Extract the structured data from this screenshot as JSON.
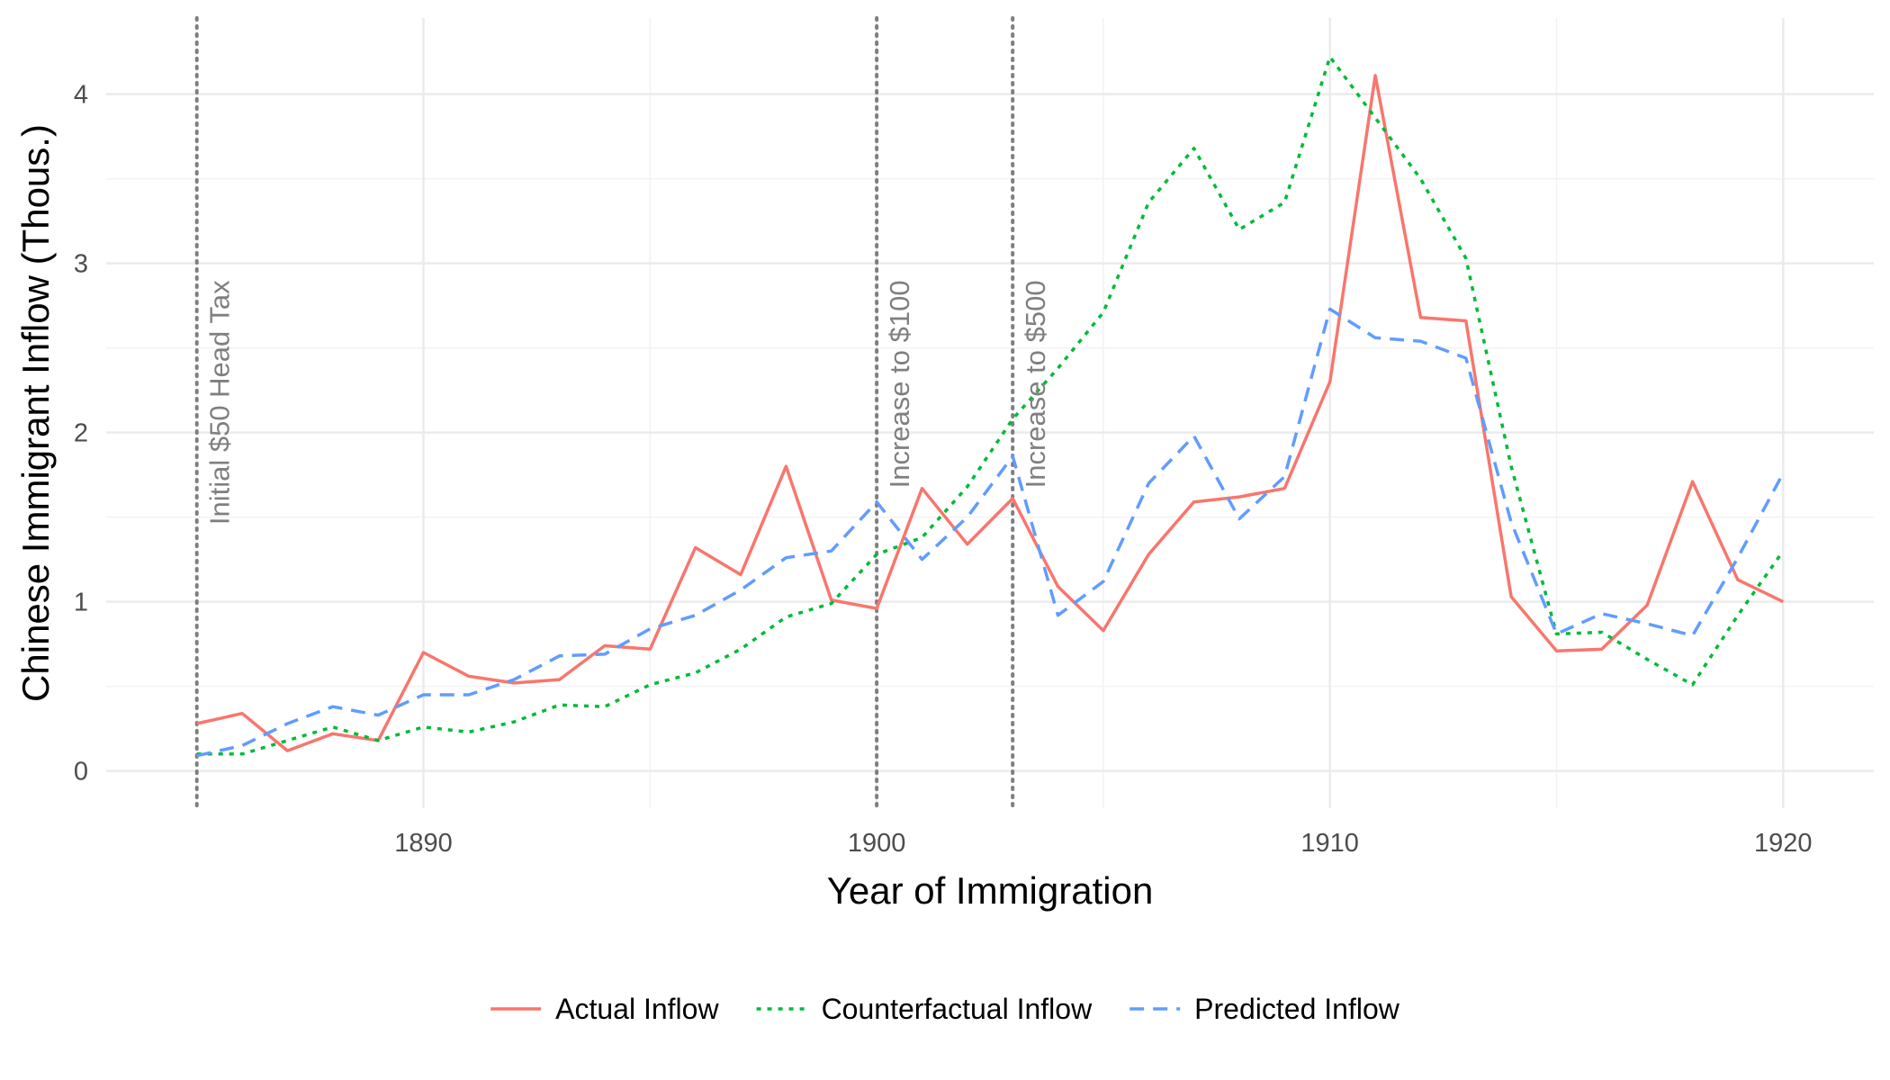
{
  "chart_data": {
    "type": "line",
    "title": "",
    "xlabel": "Year of Immigration",
    "ylabel": "Chinese Immigrant Inflow (Thous.)",
    "xlim": [
      1883,
      1922
    ],
    "ylim": [
      -0.22,
      4.45
    ],
    "x_ticks": [
      1890,
      1900,
      1910,
      1920
    ],
    "y_ticks": [
      0,
      1,
      2,
      3,
      4
    ],
    "grid": true,
    "legend_position": "bottom",
    "x": [
      1885,
      1886,
      1887,
      1888,
      1889,
      1890,
      1891,
      1892,
      1893,
      1894,
      1895,
      1896,
      1897,
      1898,
      1899,
      1900,
      1901,
      1902,
      1903,
      1904,
      1905,
      1906,
      1907,
      1908,
      1909,
      1910,
      1911,
      1912,
      1913,
      1914,
      1915,
      1916,
      1917,
      1918,
      1919,
      1920
    ],
    "series": [
      {
        "name": "Actual Inflow",
        "color": "#F8766D",
        "dash": "solid",
        "values": [
          0.28,
          0.34,
          0.12,
          0.22,
          0.18,
          0.7,
          0.56,
          0.52,
          0.54,
          0.74,
          0.72,
          1.32,
          1.16,
          1.8,
          1.01,
          0.96,
          1.67,
          1.34,
          1.61,
          1.09,
          0.83,
          1.28,
          1.59,
          1.62,
          1.67,
          2.3,
          4.11,
          2.68,
          2.66,
          1.03,
          0.71,
          0.72,
          0.98,
          1.71,
          1.13,
          1.0
        ]
      },
      {
        "name": "Counterfactual Inflow",
        "color": "#00BA38",
        "dash": "dotted",
        "values": [
          0.1,
          0.1,
          0.18,
          0.26,
          0.18,
          0.26,
          0.23,
          0.29,
          0.39,
          0.38,
          0.51,
          0.58,
          0.72,
          0.91,
          0.99,
          1.28,
          1.38,
          1.68,
          2.08,
          2.38,
          2.71,
          3.36,
          3.68,
          3.2,
          3.36,
          4.22,
          3.86,
          3.5,
          3.03,
          1.8,
          0.81,
          0.82,
          0.66,
          0.51,
          0.92,
          1.3
        ]
      },
      {
        "name": "Predicted Inflow",
        "color": "#619CFF",
        "dash": "dashed",
        "values": [
          0.09,
          0.15,
          0.28,
          0.38,
          0.33,
          0.45,
          0.45,
          0.54,
          0.68,
          0.69,
          0.84,
          0.92,
          1.07,
          1.26,
          1.3,
          1.59,
          1.25,
          1.5,
          1.86,
          0.92,
          1.12,
          1.7,
          1.98,
          1.49,
          1.74,
          2.73,
          2.56,
          2.54,
          2.44,
          1.47,
          0.81,
          0.93,
          0.87,
          0.8,
          1.26,
          1.76
        ]
      }
    ],
    "annotations": [
      {
        "x": 1885,
        "label": "Initial $50 Head Tax"
      },
      {
        "x": 1900,
        "label": "Increase to $100"
      },
      {
        "x": 1903,
        "label": "Increase to $500"
      }
    ]
  }
}
